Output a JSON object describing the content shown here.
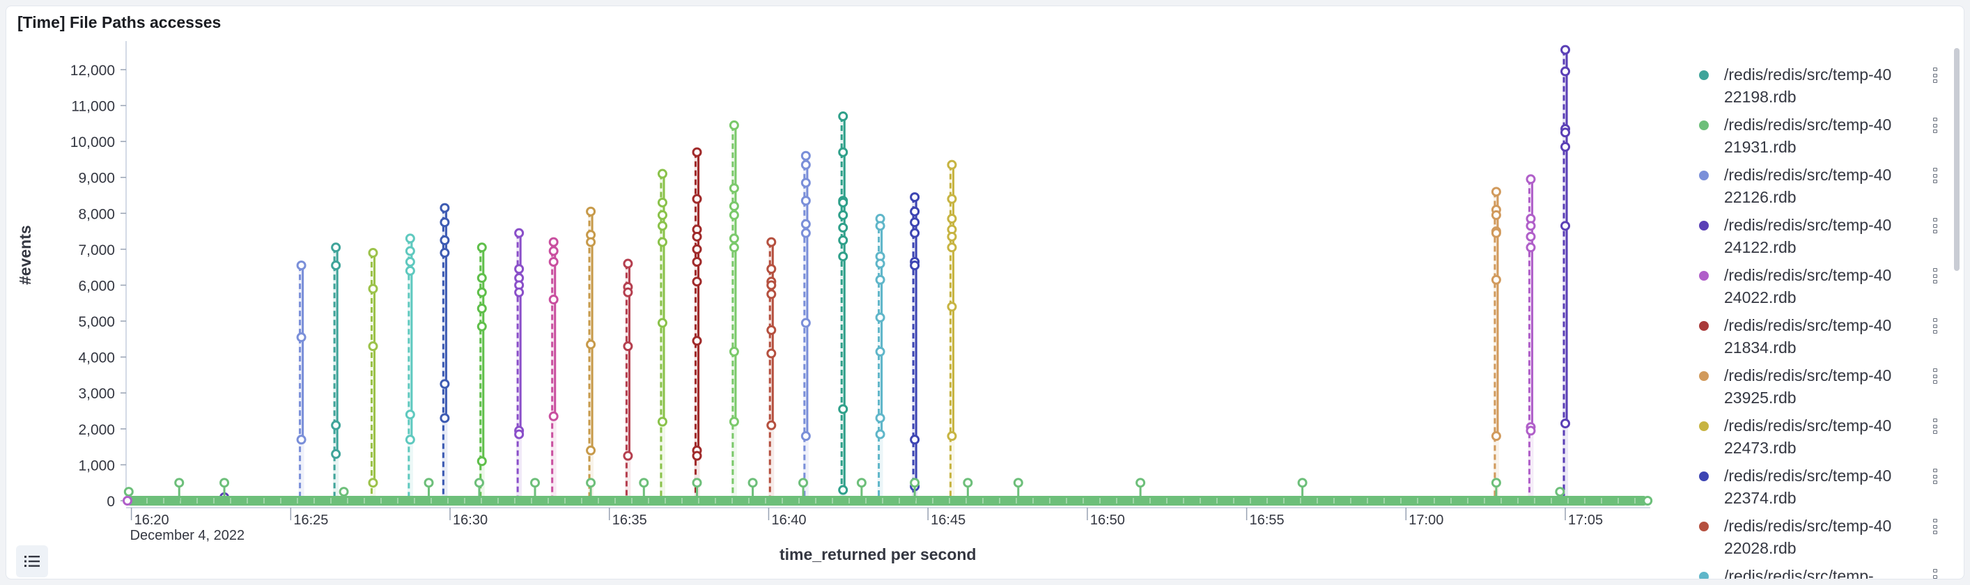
{
  "panel": {
    "title": "[Time] File Paths accesses"
  },
  "legend_toggle": {
    "icon": "list-icon"
  },
  "chart_data": {
    "type": "line",
    "title": "[Time] File Paths accesses",
    "xlabel": "time_returned per second",
    "ylabel": "#events",
    "x_axis_type": "time",
    "x_date_label": "December 4, 2022",
    "x_tick_labels": [
      "16:20",
      "16:25",
      "16:30",
      "16:35",
      "16:40",
      "16:45",
      "16:50",
      "16:55",
      "17:00",
      "17:05"
    ],
    "xlim": [
      "16:19:50",
      "17:07:40"
    ],
    "ylim": [
      0,
      12600
    ],
    "y_ticks": [
      0,
      1000,
      2000,
      3000,
      4000,
      5000,
      6000,
      7000,
      8000,
      9000,
      10000,
      11000,
      12000
    ],
    "y_tick_labels": [
      "0",
      "1,000",
      "2,000",
      "3,000",
      "4,000",
      "5,000",
      "6,000",
      "7,000",
      "8,000",
      "9,000",
      "10,000",
      "11,000",
      "12,000"
    ],
    "grid": false,
    "legend_position": "right",
    "baseline_series": {
      "name": "/redis/redis/src/temp-4021931.rdb",
      "color": "#6dbf7a",
      "description_value": 0,
      "outliers": [
        [
          "16:19:55",
          250
        ],
        [
          "16:21:30",
          500
        ],
        [
          "16:22:55",
          500
        ],
        [
          "16:26:40",
          250
        ],
        [
          "16:29:20",
          500
        ],
        [
          "16:30:55",
          500
        ],
        [
          "16:32:40",
          500
        ],
        [
          "16:34:25",
          500
        ],
        [
          "16:36:05",
          500
        ],
        [
          "16:37:45",
          500
        ],
        [
          "16:39:30",
          500
        ],
        [
          "16:41:05",
          500
        ],
        [
          "16:42:55",
          500
        ],
        [
          "16:44:35",
          500
        ],
        [
          "16:46:15",
          500
        ],
        [
          "16:47:50",
          500
        ],
        [
          "16:51:40",
          500
        ],
        [
          "16:56:45",
          500
        ],
        [
          "17:02:50",
          500
        ],
        [
          "17:04:50",
          250
        ],
        [
          "17:07:35",
          0
        ]
      ]
    },
    "series": [
      {
        "name": "/redis/redis/src/temp-4022198.rdb",
        "color": "#3fa49a"
      },
      {
        "name": "/redis/redis/src/temp-4021931.rdb",
        "color": "#6dbf7a"
      },
      {
        "name": "/redis/redis/src/temp-4022126.rdb",
        "color": "#7a8fd9"
      },
      {
        "name": "/redis/redis/src/temp-4024122.rdb",
        "color": "#5a3fb6"
      },
      {
        "name": "/redis/redis/src/temp-4024022.rdb",
        "color": "#b05fc9"
      },
      {
        "name": "/redis/redis/src/temp-4021834.rdb",
        "color": "#a93a3a"
      },
      {
        "name": "/redis/redis/src/temp-4023925.rdb",
        "color": "#d19a5c"
      },
      {
        "name": "/redis/redis/src/temp-4022473.rdb",
        "color": "#c7b442"
      },
      {
        "name": "/redis/redis/src/temp-4022374.rdb",
        "color": "#3d45b3"
      },
      {
        "name": "/redis/redis/src/temp-4022028.rdb",
        "color": "#b5503f"
      },
      {
        "name": "/redis/redis/src/temp-",
        "color": "#5fb6c9"
      }
    ],
    "spikes": [
      {
        "time": "16:25:20",
        "color": "#7a8fd9",
        "points": [
          6550,
          4550,
          1700,
          0
        ]
      },
      {
        "time": "16:22:55",
        "color": "#5a3fb6",
        "points": [
          100,
          0
        ]
      },
      {
        "time": "16:26:25",
        "color": "#3fa49a",
        "points": [
          7050,
          6550,
          2100,
          1300,
          0
        ]
      },
      {
        "time": "16:27:35",
        "color": "#9cc24a",
        "points": [
          6900,
          5900,
          4300,
          500,
          0
        ]
      },
      {
        "time": "16:28:45",
        "color": "#5fc9bf",
        "points": [
          7300,
          6950,
          6650,
          6400,
          2400,
          1700,
          0
        ]
      },
      {
        "time": "16:29:50",
        "color": "#3d5bb3",
        "points": [
          8150,
          7750,
          7250,
          6900,
          3250,
          2300,
          0
        ]
      },
      {
        "time": "16:31:00",
        "color": "#5fbf4a",
        "points": [
          7050,
          6200,
          5800,
          5350,
          4850,
          1100,
          0
        ]
      },
      {
        "time": "16:32:10",
        "color": "#8a4fc9",
        "points": [
          7450,
          6450,
          6200,
          6000,
          5800,
          1950,
          1850,
          0
        ]
      },
      {
        "time": "16:33:15",
        "color": "#c94f9f",
        "points": [
          7200,
          6950,
          6650,
          5600,
          2350,
          0
        ]
      },
      {
        "time": "16:34:25",
        "color": "#c79a4a",
        "points": [
          8050,
          7400,
          7200,
          4350,
          1400,
          0
        ]
      },
      {
        "time": "16:35:35",
        "color": "#b53f4f",
        "points": [
          6600,
          5950,
          5800,
          4300,
          1250,
          0
        ]
      },
      {
        "time": "16:36:40",
        "color": "#8ac24a",
        "points": [
          9100,
          8300,
          7950,
          7650,
          7200,
          4950,
          2200,
          0
        ]
      },
      {
        "time": "16:37:45",
        "color": "#a02a2a",
        "points": [
          9700,
          8400,
          7550,
          7350,
          7000,
          6650,
          6100,
          4450,
          1400,
          1250,
          0
        ]
      },
      {
        "time": "16:38:55",
        "color": "#7ac96a",
        "points": [
          10450,
          8700,
          8200,
          7950,
          7300,
          7050,
          4150,
          2200,
          0
        ]
      },
      {
        "time": "16:40:05",
        "color": "#b5503f",
        "points": [
          7200,
          6450,
          6100,
          6000,
          5750,
          4750,
          4100,
          2100,
          0
        ]
      },
      {
        "time": "16:41:10",
        "color": "#7a8fd9",
        "points": [
          9600,
          9350,
          8850,
          8350,
          7700,
          7450,
          4950,
          1800,
          0
        ]
      },
      {
        "time": "16:42:20",
        "color": "#2fa08a",
        "points": [
          10700,
          9700,
          8350,
          8300,
          7950,
          7600,
          7250,
          6800,
          2550,
          300,
          0
        ]
      },
      {
        "time": "16:43:30",
        "color": "#5fb6c9",
        "points": [
          7850,
          7650,
          6800,
          6600,
          6150,
          5100,
          4150,
          2300,
          1850,
          0
        ]
      },
      {
        "time": "16:44:35",
        "color": "#3d45b3",
        "points": [
          8450,
          8050,
          7750,
          7450,
          6650,
          6550,
          1700,
          400,
          0
        ]
      },
      {
        "time": "16:45:45",
        "color": "#c7b442",
        "points": [
          9350,
          8400,
          7850,
          7550,
          7350,
          7050,
          5400,
          1800,
          0
        ]
      },
      {
        "time": "17:02:50",
        "color": "#d19a5c",
        "points": [
          8600,
          8100,
          7950,
          7500,
          7450,
          6150,
          1800,
          0
        ]
      },
      {
        "time": "17:03:55",
        "color": "#b05fc9",
        "points": [
          8950,
          7850,
          7650,
          7350,
          7050,
          2050,
          1950,
          0
        ]
      },
      {
        "time": "17:05:00",
        "color": "#5a3fb6",
        "points": [
          12550,
          11950,
          10350,
          10250,
          9850,
          7650,
          2150,
          0
        ]
      }
    ]
  }
}
